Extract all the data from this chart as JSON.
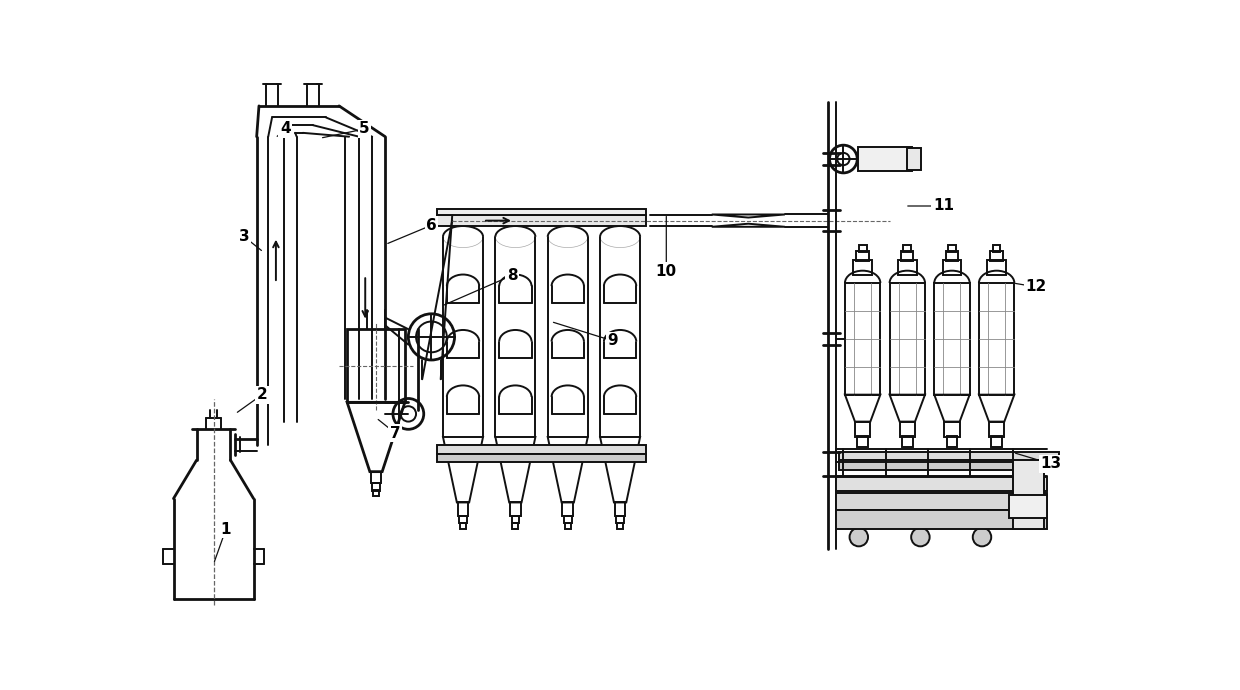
{
  "bg_color": "#ffffff",
  "line_color": "#111111",
  "lw": 1.4,
  "lw2": 2.0,
  "figsize": [
    12.4,
    6.9
  ],
  "dpi": 100
}
